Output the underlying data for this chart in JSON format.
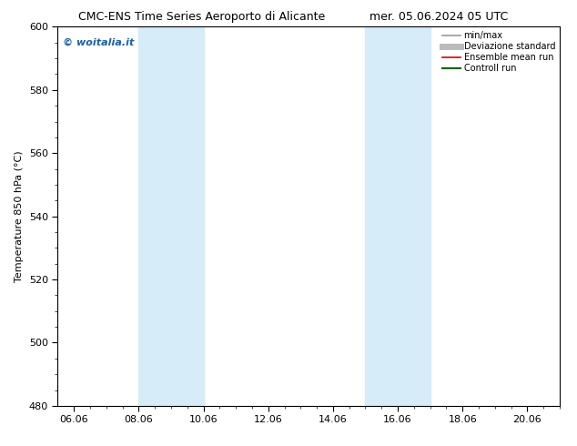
{
  "title_left": "CMC-ENS Time Series Aeroporto di Alicante",
  "title_right": "mer. 05.06.2024 05 UTC",
  "ylabel": "Temperature 850 hPa (°C)",
  "watermark": "© woitalia.it",
  "ylim": [
    480,
    600
  ],
  "yticks": [
    480,
    500,
    520,
    540,
    560,
    580,
    600
  ],
  "xtick_labels": [
    "06.06",
    "08.06",
    "10.06",
    "12.06",
    "14.06",
    "16.06",
    "18.06",
    "20.06"
  ],
  "xtick_positions": [
    0,
    2,
    4,
    6,
    8,
    10,
    12,
    14
  ],
  "xlim": [
    -0.5,
    15.0
  ],
  "shaded_bands": [
    {
      "xmin": 2,
      "xmax": 4,
      "color": "#d6ecf8"
    },
    {
      "xmin": 9,
      "xmax": 11,
      "color": "#d6ecf8"
    }
  ],
  "legend_entries": [
    {
      "label": "min/max",
      "color": "#999999",
      "lw": 1.2
    },
    {
      "label": "Deviazione standard",
      "color": "#bbbbbb",
      "lw": 5
    },
    {
      "label": "Ensemble mean run",
      "color": "#dd0000",
      "lw": 1.2
    },
    {
      "label": "Controll run",
      "color": "#006600",
      "lw": 1.5
    }
  ],
  "bg_color": "#ffffff",
  "plot_bg_color": "#ffffff",
  "border_color": "#000000",
  "watermark_color": "#1a5fa8",
  "title_fontsize": 9,
  "axis_fontsize": 8,
  "tick_fontsize": 8,
  "legend_fontsize": 7
}
